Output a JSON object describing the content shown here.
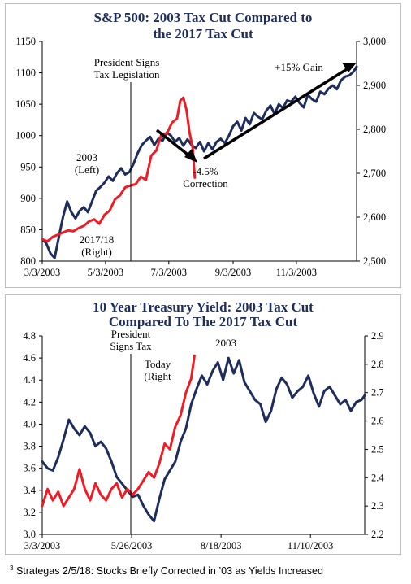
{
  "footnote": {
    "marker": "3",
    "text": "Strategas 2/5/18: Stocks Briefly Corrected in ’03 as Yields Increased"
  },
  "colors": {
    "navy": "#1f2d5c",
    "red": "#ee1c25",
    "black": "#000000"
  },
  "chart_data": [
    {
      "type": "line",
      "title_lines": [
        "S&P 500: 2003 Tax Cut Compared to",
        "the 2017 Tax Cut"
      ],
      "xlabel": "",
      "ylabel": "",
      "x_tick_labels": [
        "3/3/2003",
        "5/3/2003",
        "7/3/2003",
        "9/3/2003",
        "11/3/2003"
      ],
      "x_tick_dates": [
        "2003-03-03",
        "2003-05-03",
        "2003-07-03",
        "2003-09-03",
        "2003-11-03"
      ],
      "xlim": [
        "2003-03-03",
        "2003-12-31"
      ],
      "y_left": {
        "lim": [
          800,
          1150
        ],
        "ticks": [
          800,
          850,
          900,
          950,
          1000,
          1050,
          1100,
          1150
        ]
      },
      "y_right": {
        "lim": [
          2500,
          3000
        ],
        "ticks": [
          "2,500",
          "2,600",
          "2,700",
          "2,800",
          "2,900",
          "3,000"
        ],
        "tick_values": [
          2500,
          2600,
          2700,
          2800,
          2900,
          3000
        ]
      },
      "grid": false,
      "vline_date": "2003-05-28",
      "series": [
        {
          "name": "2003 (Left)",
          "axis": "left",
          "color": "#1f2d5c",
          "x": [
            "2003-03-03",
            "2003-03-07",
            "2003-03-11",
            "2003-03-15",
            "2003-03-19",
            "2003-03-23",
            "2003-03-27",
            "2003-03-31",
            "2003-04-04",
            "2003-04-08",
            "2003-04-12",
            "2003-04-16",
            "2003-04-20",
            "2003-04-24",
            "2003-04-28",
            "2003-05-02",
            "2003-05-06",
            "2003-05-10",
            "2003-05-14",
            "2003-05-18",
            "2003-05-22",
            "2003-05-26",
            "2003-05-30",
            "2003-06-03",
            "2003-06-07",
            "2003-06-11",
            "2003-06-15",
            "2003-06-19",
            "2003-06-23",
            "2003-06-27",
            "2003-07-01",
            "2003-07-05",
            "2003-07-09",
            "2003-07-13",
            "2003-07-17",
            "2003-07-21",
            "2003-07-25",
            "2003-07-29",
            "2003-08-02",
            "2003-08-06",
            "2003-08-10",
            "2003-08-14",
            "2003-08-18",
            "2003-08-22",
            "2003-08-26",
            "2003-08-30",
            "2003-09-03",
            "2003-09-07",
            "2003-09-11",
            "2003-09-15",
            "2003-09-19",
            "2003-09-23",
            "2003-09-27",
            "2003-10-01",
            "2003-10-05",
            "2003-10-09",
            "2003-10-13",
            "2003-10-17",
            "2003-10-21",
            "2003-10-25",
            "2003-10-29",
            "2003-11-02",
            "2003-11-06",
            "2003-11-10",
            "2003-11-14",
            "2003-11-18",
            "2003-11-22",
            "2003-11-26",
            "2003-11-30",
            "2003-12-04",
            "2003-12-08",
            "2003-12-12",
            "2003-12-16",
            "2003-12-20",
            "2003-12-24",
            "2003-12-28",
            "2003-12-31"
          ],
          "y": [
            835,
            828,
            812,
            805,
            838,
            870,
            895,
            878,
            868,
            880,
            886,
            878,
            895,
            912,
            918,
            925,
            935,
            928,
            940,
            948,
            938,
            942,
            955,
            972,
            985,
            992,
            998,
            985,
            995,
            992,
            1005,
            1000,
            990,
            996,
            984,
            994,
            985,
            980,
            990,
            975,
            988,
            978,
            990,
            995,
            988,
            1000,
            1015,
            1022,
            1008,
            1028,
            1018,
            1036,
            1030,
            1026,
            1040,
            1048,
            1034,
            1050,
            1044,
            1056,
            1054,
            1062,
            1052,
            1045,
            1065,
            1058,
            1054,
            1070,
            1066,
            1075,
            1080,
            1074,
            1088,
            1094,
            1096,
            1102,
            1110
          ]
        },
        {
          "name": "2017/18 (Right)",
          "axis": "right",
          "color": "#ee1c25",
          "x": [
            "2003-03-03",
            "2003-03-08",
            "2003-03-13",
            "2003-03-18",
            "2003-03-23",
            "2003-03-28",
            "2003-04-02",
            "2003-04-07",
            "2003-04-12",
            "2003-04-17",
            "2003-04-22",
            "2003-04-27",
            "2003-05-02",
            "2003-05-07",
            "2003-05-12",
            "2003-05-17",
            "2003-05-22",
            "2003-05-27",
            "2003-06-01",
            "2003-06-06",
            "2003-06-11",
            "2003-06-16",
            "2003-06-21",
            "2003-06-26",
            "2003-07-01",
            "2003-07-06",
            "2003-07-11",
            "2003-07-14",
            "2003-07-17",
            "2003-07-20",
            "2003-07-23",
            "2003-07-26",
            "2003-07-28"
          ],
          "y": [
            2550,
            2545,
            2555,
            2560,
            2565,
            2570,
            2568,
            2575,
            2580,
            2590,
            2595,
            2585,
            2605,
            2615,
            2640,
            2650,
            2668,
            2672,
            2675,
            2692,
            2685,
            2740,
            2752,
            2790,
            2790,
            2815,
            2825,
            2865,
            2872,
            2845,
            2792,
            2758,
            2690
          ]
        }
      ],
      "annotations": [
        {
          "lines": [
            "President Signs",
            "Tax Legislation"
          ]
        },
        {
          "lines": [
            "2003",
            "(Left)"
          ]
        },
        {
          "lines": [
            "2017/18",
            "(Right)"
          ]
        },
        {
          "lines": [
            "-4.5%",
            "Correction"
          ]
        },
        {
          "lines": [
            "+15% Gain"
          ]
        }
      ]
    },
    {
      "type": "line",
      "title_lines": [
        "10 Year Treasury Yield: 2003 Tax Cut",
        "Compared To The 2017 Tax Cut"
      ],
      "xlabel": "",
      "ylabel": "",
      "x_tick_labels": [
        "3/3/2003",
        "5/26/2003",
        "8/18/2003",
        "11/10/2003"
      ],
      "x_tick_dates": [
        "2003-03-03",
        "2003-05-26",
        "2003-08-18",
        "2003-11-10"
      ],
      "xlim": [
        "2003-03-03",
        "2003-12-31"
      ],
      "y_left": {
        "lim": [
          3.0,
          4.8
        ],
        "ticks": [
          "3.0",
          "3.2",
          "3.4",
          "3.6",
          "3.8",
          "4.0",
          "4.2",
          "4.4",
          "4.6",
          "4.8"
        ],
        "tick_values": [
          3.0,
          3.2,
          3.4,
          3.6,
          3.8,
          4.0,
          4.2,
          4.4,
          4.6,
          4.8
        ]
      },
      "y_right": {
        "lim": [
          2.2,
          2.9
        ],
        "ticks": [
          "2.2",
          "2.3",
          "2.4",
          "2.5",
          "2.6",
          "2.7",
          "2.8",
          "2.9"
        ],
        "tick_values": [
          2.2,
          2.3,
          2.4,
          2.5,
          2.6,
          2.7,
          2.8,
          2.9
        ]
      },
      "grid": false,
      "vline_date": "2003-05-28",
      "series": [
        {
          "name": "2003",
          "axis": "left",
          "color": "#1f2d5c",
          "x": [
            "2003-03-03",
            "2003-03-08",
            "2003-03-13",
            "2003-03-18",
            "2003-03-23",
            "2003-03-28",
            "2003-04-02",
            "2003-04-07",
            "2003-04-12",
            "2003-04-17",
            "2003-04-22",
            "2003-04-27",
            "2003-05-02",
            "2003-05-07",
            "2003-05-12",
            "2003-05-17",
            "2003-05-22",
            "2003-05-27",
            "2003-06-01",
            "2003-06-06",
            "2003-06-11",
            "2003-06-16",
            "2003-06-21",
            "2003-06-26",
            "2003-07-01",
            "2003-07-06",
            "2003-07-11",
            "2003-07-16",
            "2003-07-21",
            "2003-07-26",
            "2003-07-31",
            "2003-08-05",
            "2003-08-10",
            "2003-08-15",
            "2003-08-20",
            "2003-08-25",
            "2003-08-30",
            "2003-09-04",
            "2003-09-09",
            "2003-09-14",
            "2003-09-19",
            "2003-09-24",
            "2003-09-29",
            "2003-10-04",
            "2003-10-09",
            "2003-10-14",
            "2003-10-19",
            "2003-10-24",
            "2003-10-29",
            "2003-11-03",
            "2003-11-08",
            "2003-11-13",
            "2003-11-18",
            "2003-11-23",
            "2003-11-28",
            "2003-12-03",
            "2003-12-08",
            "2003-12-13",
            "2003-12-18",
            "2003-12-23",
            "2003-12-28",
            "2003-12-31"
          ],
          "y": [
            3.66,
            3.6,
            3.58,
            3.7,
            3.86,
            4.04,
            3.96,
            3.9,
            3.98,
            3.92,
            3.8,
            3.84,
            3.78,
            3.66,
            3.52,
            3.46,
            3.4,
            3.34,
            3.36,
            3.26,
            3.18,
            3.12,
            3.32,
            3.5,
            3.58,
            3.66,
            3.84,
            3.96,
            4.18,
            4.32,
            4.44,
            4.36,
            4.48,
            4.56,
            4.4,
            4.6,
            4.46,
            4.58,
            4.38,
            4.3,
            4.22,
            4.18,
            4.02,
            4.12,
            4.32,
            4.42,
            4.36,
            4.24,
            4.3,
            4.34,
            4.44,
            4.28,
            4.16,
            4.3,
            4.34,
            4.26,
            4.18,
            4.22,
            4.12,
            4.2,
            4.22,
            4.26
          ]
        },
        {
          "name": "Today (Right",
          "axis": "right",
          "color": "#ee1c25",
          "x": [
            "2003-03-03",
            "2003-03-08",
            "2003-03-13",
            "2003-03-18",
            "2003-03-23",
            "2003-03-28",
            "2003-04-02",
            "2003-04-07",
            "2003-04-12",
            "2003-04-17",
            "2003-04-22",
            "2003-04-27",
            "2003-05-02",
            "2003-05-07",
            "2003-05-12",
            "2003-05-17",
            "2003-05-22",
            "2003-05-27",
            "2003-06-01",
            "2003-06-06",
            "2003-06-11",
            "2003-06-16",
            "2003-06-21",
            "2003-06-26",
            "2003-07-01",
            "2003-07-06",
            "2003-07-11",
            "2003-07-16",
            "2003-07-21",
            "2003-07-24"
          ],
          "y": [
            2.3,
            2.36,
            2.32,
            2.35,
            2.3,
            2.33,
            2.36,
            2.43,
            2.36,
            2.32,
            2.38,
            2.34,
            2.32,
            2.36,
            2.38,
            2.33,
            2.36,
            2.34,
            2.36,
            2.39,
            2.42,
            2.4,
            2.45,
            2.52,
            2.5,
            2.58,
            2.62,
            2.7,
            2.75,
            2.83
          ]
        }
      ],
      "annotations": [
        {
          "lines": [
            "President",
            "Signs Tax"
          ]
        },
        {
          "lines": [
            "2003"
          ]
        },
        {
          "lines": [
            "Today",
            "(Right"
          ]
        }
      ]
    }
  ]
}
